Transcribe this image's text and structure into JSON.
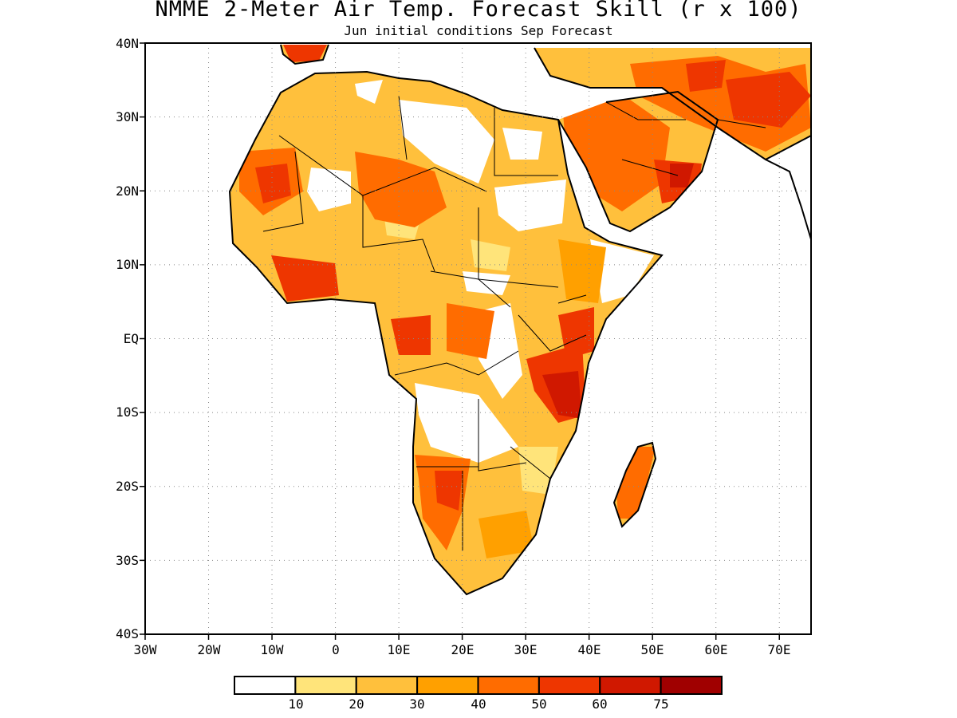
{
  "title": "NMME 2-Meter Air Temp. Forecast Skill (r x 100)",
  "subtitle": "Jun initial conditions  Sep Forecast",
  "map": {
    "lon_range": [
      -30,
      75
    ],
    "lat_range": [
      -40,
      40
    ],
    "lat_labels": [
      "40N",
      "30N",
      "20N",
      "10N",
      "EQ",
      "10S",
      "20S",
      "30S",
      "40S"
    ],
    "lon_labels": [
      "30W",
      "20W",
      "10W",
      "0",
      "10E",
      "20E",
      "30E",
      "40E",
      "50E",
      "60E",
      "70E"
    ],
    "grid": "dotted"
  },
  "legend": {
    "thresholds": [
      "10",
      "20",
      "30",
      "40",
      "50",
      "60",
      "75"
    ],
    "colors": [
      "#ffffff",
      "#ffe47a",
      "#ffc03c",
      "#ffa000",
      "#ff6c00",
      "#ee3600",
      "#d01800",
      "#a00000"
    ]
  }
}
